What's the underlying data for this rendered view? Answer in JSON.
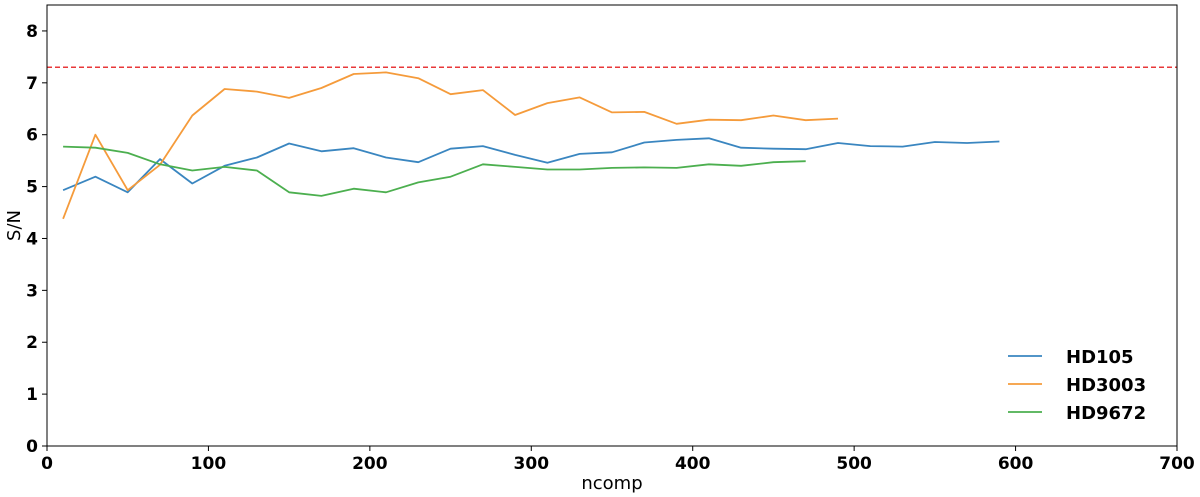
{
  "chart_data": {
    "type": "line",
    "title": "",
    "xlabel": "ncomp",
    "ylabel": "S/N",
    "xlim": [
      0,
      700
    ],
    "ylim": [
      0,
      8.5
    ],
    "xticks": [
      0,
      100,
      200,
      300,
      400,
      500,
      600,
      700
    ],
    "yticks": [
      0,
      1,
      2,
      3,
      4,
      5,
      6,
      7,
      8
    ],
    "grid": false,
    "legend_position": "lower-right",
    "reference_line": {
      "y": 7.3,
      "color": "#e8383a",
      "style": "dashed"
    },
    "series": [
      {
        "name": "HD105",
        "color": "#3a86c0",
        "x": [
          10,
          30,
          50,
          70,
          90,
          110,
          130,
          150,
          170,
          190,
          210,
          230,
          250,
          270,
          290,
          310,
          330,
          350,
          370,
          390,
          410,
          430,
          450,
          470,
          490,
          510,
          530,
          550,
          570,
          590
        ],
        "y": [
          4.93,
          5.19,
          4.89,
          5.53,
          5.06,
          5.4,
          5.56,
          5.83,
          5.68,
          5.74,
          5.56,
          5.47,
          5.73,
          5.78,
          5.61,
          5.46,
          5.63,
          5.66,
          5.85,
          5.9,
          5.93,
          5.75,
          5.73,
          5.72,
          5.84,
          5.78,
          5.77,
          5.86,
          5.84,
          5.87
        ]
      },
      {
        "name": "HD3003",
        "color": "#f59b3b",
        "x": [
          10,
          30,
          50,
          70,
          90,
          110,
          130,
          150,
          170,
          190,
          210,
          230,
          250,
          270,
          290,
          310,
          330,
          350,
          370,
          390,
          410,
          430,
          450,
          470,
          490
        ],
        "y": [
          4.38,
          6.0,
          4.93,
          5.42,
          6.37,
          6.88,
          6.83,
          6.71,
          6.9,
          7.17,
          7.2,
          7.09,
          6.78,
          6.86,
          6.38,
          6.61,
          6.72,
          6.43,
          6.44,
          6.21,
          6.29,
          6.28,
          6.37,
          6.28,
          6.31
        ]
      },
      {
        "name": "HD9672",
        "color": "#4caf4f",
        "x": [
          10,
          30,
          50,
          70,
          90,
          110,
          130,
          150,
          170,
          190,
          210,
          230,
          250,
          270,
          290,
          310,
          330,
          350,
          370,
          390,
          410,
          430,
          450,
          470
        ],
        "y": [
          5.77,
          5.75,
          5.65,
          5.43,
          5.31,
          5.38,
          5.31,
          4.89,
          4.82,
          4.96,
          4.89,
          5.08,
          5.19,
          5.43,
          5.38,
          5.33,
          5.33,
          5.36,
          5.37,
          5.36,
          5.43,
          5.4,
          5.47,
          5.49
        ]
      }
    ]
  }
}
